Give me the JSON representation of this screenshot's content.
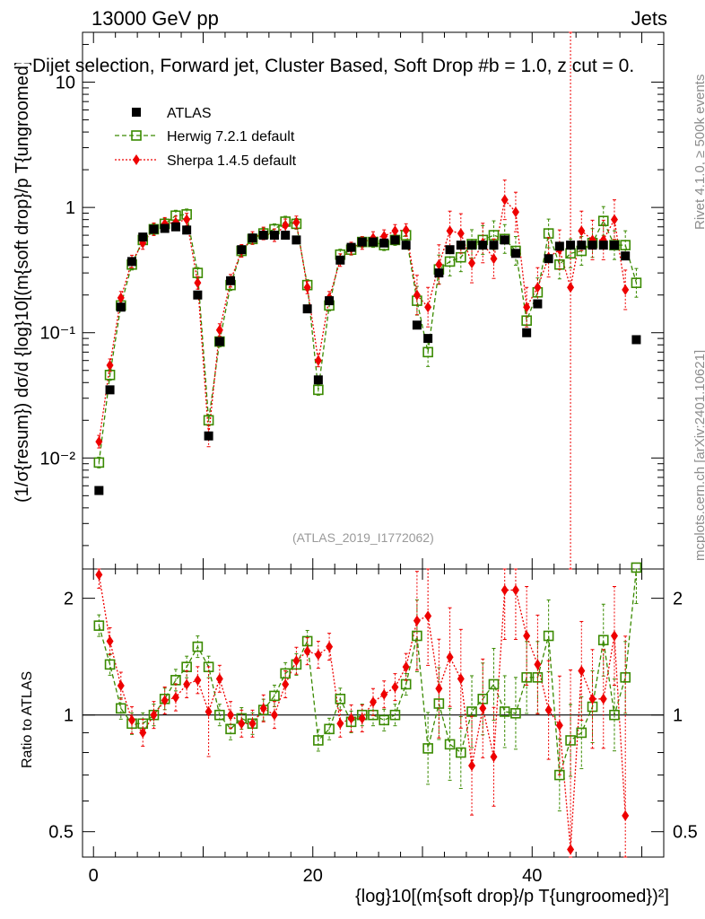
{
  "header": {
    "left": "13000 GeV pp",
    "right": "Jets",
    "subtitle": "Dijet selection, Forward jet, Cluster Based, Soft Drop #b = 1.0, z cut = 0.",
    "side_rivet": "Rivet 4.1.0, ≥ 500k events",
    "side_mcplots": "mcplots.cern.ch [arXiv:2401.10621]",
    "watermark": "(ATLAS_2019_I1772062)"
  },
  "colors": {
    "atlas": "#000000",
    "herwig": "#3a8a00",
    "sherpa": "#ee0000"
  },
  "chart_data": {
    "type": "scatter",
    "x": [
      0.5,
      1.5,
      2.5,
      3.5,
      4.5,
      5.5,
      6.5,
      7.5,
      8.5,
      9.5,
      10.5,
      11.5,
      12.5,
      13.5,
      14.5,
      15.5,
      16.5,
      17.5,
      18.5,
      19.5,
      20.5,
      21.5,
      22.5,
      23.5,
      24.5,
      25.5,
      26.5,
      27.5,
      28.5,
      29.5,
      30.5,
      31.5,
      32.5,
      33.5,
      34.5,
      35.5,
      36.5,
      37.5,
      38.5,
      39.5,
      40.5,
      41.5,
      42.5,
      43.5,
      44.5,
      45.5,
      46.5,
      47.5,
      48.5,
      49.5
    ],
    "xlim": [
      -1,
      52
    ],
    "main": {
      "ylabel": "(1/σ{resum}) dσ/d {log}10[(m{soft drop}/p T{ungroomed})²]",
      "yscale": "log",
      "ylim": [
        0.0013,
        25
      ],
      "ytick_labels": [
        "10⁻²",
        "10⁻¹",
        "1",
        "10"
      ],
      "legend": [
        "ATLAS",
        "Herwig 7.2.1 default",
        "Sherpa 1.4.5 default"
      ],
      "legend_position": "top-left",
      "series": [
        {
          "name": "ATLAS",
          "marker": "square-filled",
          "values": [
            0.0055,
            0.035,
            0.16,
            0.37,
            0.58,
            0.67,
            0.68,
            0.7,
            0.66,
            0.2,
            0.015,
            0.085,
            0.26,
            0.46,
            0.57,
            0.6,
            0.6,
            0.6,
            0.55,
            0.155,
            0.042,
            0.18,
            0.38,
            0.48,
            0.53,
            0.53,
            0.52,
            0.55,
            0.5,
            0.115,
            0.09,
            0.3,
            0.46,
            0.5,
            0.5,
            0.5,
            0.5,
            0.55,
            0.43,
            0.1,
            0.17,
            0.39,
            0.49,
            0.5,
            0.5,
            0.5,
            0.5,
            0.5,
            0.41,
            0.088
          ]
        },
        {
          "name": "Herwig 7.2.1 default",
          "marker": "square-open",
          "line": "dashed",
          "values": [
            0.0092,
            0.046,
            0.165,
            0.35,
            0.55,
            0.67,
            0.74,
            0.86,
            0.88,
            0.3,
            0.02,
            0.085,
            0.24,
            0.45,
            0.56,
            0.62,
            0.67,
            0.77,
            0.74,
            0.24,
            0.035,
            0.165,
            0.42,
            0.46,
            0.53,
            0.53,
            0.5,
            0.55,
            0.6,
            0.18,
            0.07,
            0.32,
            0.37,
            0.4,
            0.51,
            0.55,
            0.6,
            0.56,
            0.45,
            0.125,
            0.21,
            0.62,
            0.35,
            0.43,
            0.45,
            0.52,
            0.78,
            0.5,
            0.5,
            0.25
          ]
        },
        {
          "name": "Sherpa 1.4.5 default",
          "marker": "diamond",
          "line": "dotted",
          "values": [
            0.0135,
            0.055,
            0.19,
            0.37,
            0.52,
            0.67,
            0.74,
            0.76,
            0.8,
            0.25,
            0.015,
            0.105,
            0.26,
            0.45,
            0.57,
            0.62,
            0.6,
            0.72,
            0.76,
            0.23,
            0.06,
            0.19,
            0.38,
            0.47,
            0.52,
            0.57,
            0.59,
            0.65,
            0.66,
            0.2,
            0.16,
            0.35,
            0.65,
            0.62,
            0.36,
            0.52,
            0.39,
            1.15,
            0.92,
            0.16,
            0.23,
            0.4,
            0.46,
            0.23,
            0.65,
            0.55,
            0.55,
            0.8,
            0.22,
            0
          ]
        }
      ]
    },
    "ratio": {
      "ylabel": "Ratio to ATLAS",
      "yscale": "log",
      "ylim": [
        0.43,
        2.38
      ],
      "ytick_labels": [
        "0.5",
        "1",
        "2"
      ],
      "xtick_labels": [
        "0",
        "20",
        "40"
      ],
      "xlabel": "{log}10[(m{soft drop}/p T{ungroomed})²]",
      "series": [
        {
          "name": "Herwig 7.2.1 default",
          "values": [
            1.7,
            1.35,
            1.04,
            0.95,
            0.95,
            1.0,
            1.1,
            1.23,
            1.33,
            1.5,
            1.33,
            1.0,
            0.92,
            0.98,
            0.95,
            1.03,
            1.12,
            1.28,
            1.35,
            1.55,
            0.86,
            0.92,
            1.1,
            0.96,
            1.0,
            1.0,
            0.97,
            1.0,
            1.2,
            1.6,
            0.82,
            1.07,
            0.84,
            0.8,
            1.02,
            1.1,
            1.2,
            1.02,
            1.01,
            1.25,
            1.25,
            1.6,
            0.7,
            0.86,
            0.9,
            1.05,
            1.56,
            1.0,
            1.25,
            2.4
          ]
        },
        {
          "name": "Sherpa 1.4.5 default",
          "values": [
            2.3,
            1.55,
            1.19,
            0.97,
            0.9,
            1.0,
            1.09,
            1.11,
            1.2,
            1.23,
            1.02,
            1.24,
            1.0,
            0.95,
            0.95,
            1.04,
            1.0,
            1.2,
            1.38,
            1.46,
            1.43,
            1.5,
            0.95,
            0.98,
            0.98,
            1.08,
            1.13,
            1.18,
            1.33,
            1.75,
            1.8,
            1.17,
            1.41,
            1.24,
            0.74,
            1.04,
            0.78,
            2.1,
            2.1,
            1.6,
            1.35,
            1.03,
            0.94,
            0.45,
            1.3,
            1.1,
            1.1,
            1.6,
            0.55,
            0
          ]
        }
      ]
    }
  }
}
